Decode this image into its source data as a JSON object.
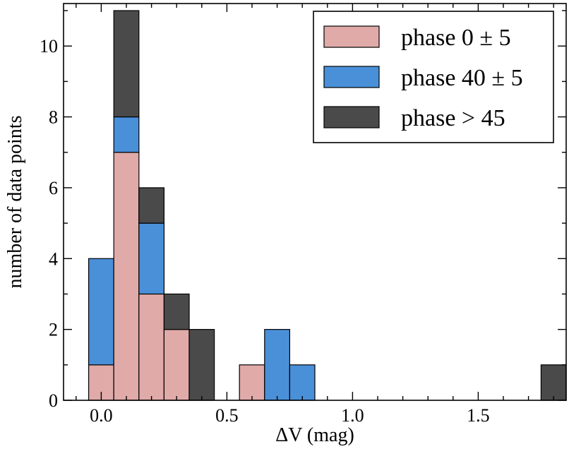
{
  "chart_data": {
    "type": "bar",
    "stacked": true,
    "bin_width": 0.1,
    "bins": [
      0.0,
      0.1,
      0.2,
      0.3,
      0.4,
      0.6,
      0.7,
      0.8,
      1.8
    ],
    "series": [
      {
        "name": "phase 0 ± 5",
        "color": "#e0aaa8",
        "values": [
          1,
          7,
          3,
          2,
          0,
          1,
          0,
          0,
          0
        ]
      },
      {
        "name": "phase 40 ± 5",
        "color": "#4a90d9",
        "values": [
          3,
          1,
          2,
          0,
          0,
          0,
          2,
          1,
          0
        ]
      },
      {
        "name": "phase > 45",
        "color": "#4a4a4a",
        "values": [
          0,
          3,
          1,
          1,
          2,
          0,
          0,
          0,
          1
        ]
      }
    ],
    "xlabel": "ΔV (mag)",
    "ylabel": "number of data points",
    "xlim": [
      -0.15,
      1.85
    ],
    "ylim": [
      0,
      11.2
    ],
    "xticks": [
      0.0,
      0.5,
      1.0,
      1.5
    ],
    "xtick_labels": [
      "0.0",
      "0.5",
      "1.0",
      "1.5"
    ],
    "yticks": [
      0,
      2,
      4,
      6,
      8,
      10
    ],
    "ytick_labels": [
      "0",
      "2",
      "4",
      "6",
      "8",
      "10"
    ],
    "legend_position": "top-right"
  }
}
